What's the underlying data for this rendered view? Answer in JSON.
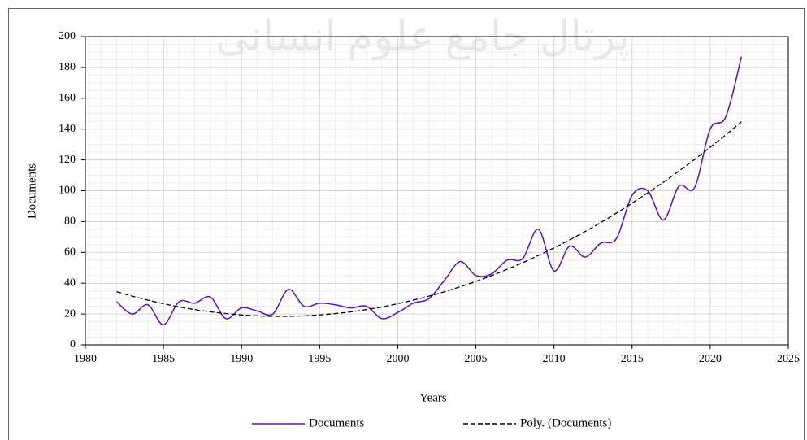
{
  "chart_data": {
    "type": "line",
    "watermark": "پرتال جامع علوم انسانی",
    "xlabel": "Years",
    "ylabel": "Documents",
    "x": [
      1982,
      1983,
      1984,
      1985,
      1986,
      1987,
      1988,
      1989,
      1990,
      1991,
      1992,
      1993,
      1994,
      1995,
      1996,
      1997,
      1998,
      1999,
      2000,
      2001,
      2002,
      2003,
      2004,
      2005,
      2006,
      2007,
      2008,
      2009,
      2010,
      2011,
      2012,
      2013,
      2014,
      2015,
      2016,
      2017,
      2018,
      2019,
      2020,
      2021,
      2022
    ],
    "series": [
      {
        "name": "Documents",
        "color": "#5b0fc8",
        "style": "solid",
        "smooth": true,
        "values": [
          28,
          20,
          26,
          13,
          28,
          27,
          31,
          17,
          24,
          22,
          20,
          36,
          25,
          27,
          26,
          24,
          25,
          17,
          21,
          27,
          30,
          42,
          54,
          45,
          46,
          55,
          56,
          75,
          48,
          64,
          57,
          66,
          69,
          97,
          100,
          81,
          103,
          102,
          140,
          148,
          187
        ]
      },
      {
        "name": "Poly. (Documents)",
        "color": "#000000",
        "style": "dashed",
        "smooth": true,
        "values": [
          34.5,
          31.6,
          29.0,
          26.7,
          24.6,
          22.9,
          21.4,
          20.3,
          19.4,
          18.8,
          18.5,
          18.5,
          18.8,
          19.4,
          20.3,
          21.4,
          22.9,
          24.6,
          26.7,
          29.0,
          31.6,
          34.5,
          37.7,
          41.2,
          44.9,
          49.0,
          53.3,
          58.0,
          62.9,
          68.1,
          73.6,
          79.4,
          85.5,
          91.9,
          98.6,
          105.5,
          112.8,
          120.3,
          128.2,
          136.3,
          144.7
        ]
      }
    ],
    "xlim": [
      1980,
      2025
    ],
    "xticks": [
      1980,
      1985,
      1990,
      1995,
      2000,
      2005,
      2010,
      2015,
      2020,
      2025
    ],
    "ylim": [
      0,
      200
    ],
    "yticks": [
      0,
      20,
      40,
      60,
      80,
      100,
      120,
      140,
      160,
      180,
      200
    ],
    "grid": true,
    "legend": "bottom"
  }
}
